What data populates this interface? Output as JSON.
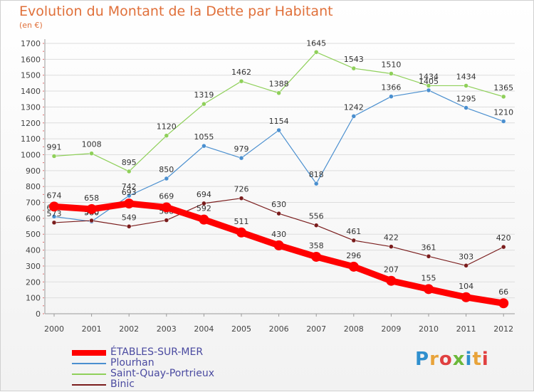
{
  "header": {
    "title": "Evolution du Montant de la Dette par Habitant",
    "subtitle": "(en €)"
  },
  "logo": {
    "text": "Proxiti",
    "colors": [
      "#2f8fce",
      "#e8a33a",
      "#e04040",
      "#6bb83a"
    ]
  },
  "chart_data": {
    "type": "line",
    "title": "Evolution du Montant de la Dette par Habitant",
    "ylabel": "(en €)",
    "x": [
      "2000",
      "2001",
      "2002",
      "2003",
      "2004",
      "2005",
      "2006",
      "2007",
      "2008",
      "2009",
      "2010",
      "2011",
      "2012"
    ],
    "ylim": [
      0,
      1700
    ],
    "yticks": [
      0,
      100,
      200,
      300,
      400,
      500,
      600,
      700,
      800,
      900,
      1000,
      1100,
      1200,
      1300,
      1400,
      1500,
      1600,
      1700
    ],
    "grid": true,
    "legend_position": "bottom-left",
    "series": [
      {
        "name": "Saint-Quay-Portrieux",
        "color": "#8fd05a",
        "values": [
          991,
          1008,
          895,
          1120,
          1319,
          1462,
          1388,
          1645,
          1543,
          1510,
          1434,
          1434,
          1365
        ]
      },
      {
        "name": "Plourhan",
        "color": "#4a8fcf",
        "values": [
          611,
          580,
          742,
          850,
          1055,
          979,
          1154,
          818,
          1242,
          1366,
          1405,
          1295,
          1210
        ]
      },
      {
        "name": "Binic",
        "color": "#7a1c1c",
        "values": [
          573,
          586,
          549,
          588,
          694,
          726,
          630,
          556,
          461,
          422,
          361,
          303,
          420
        ]
      },
      {
        "name": "ÉTABLES-SUR-MER",
        "color": "#ff0000",
        "values": [
          674,
          658,
          693,
          669,
          592,
          511,
          430,
          358,
          296,
          207,
          155,
          104,
          66
        ]
      }
    ],
    "legend_order": [
      "ÉTABLES-SUR-MER",
      "Plourhan",
      "Saint-Quay-Portrieux",
      "Binic"
    ]
  }
}
